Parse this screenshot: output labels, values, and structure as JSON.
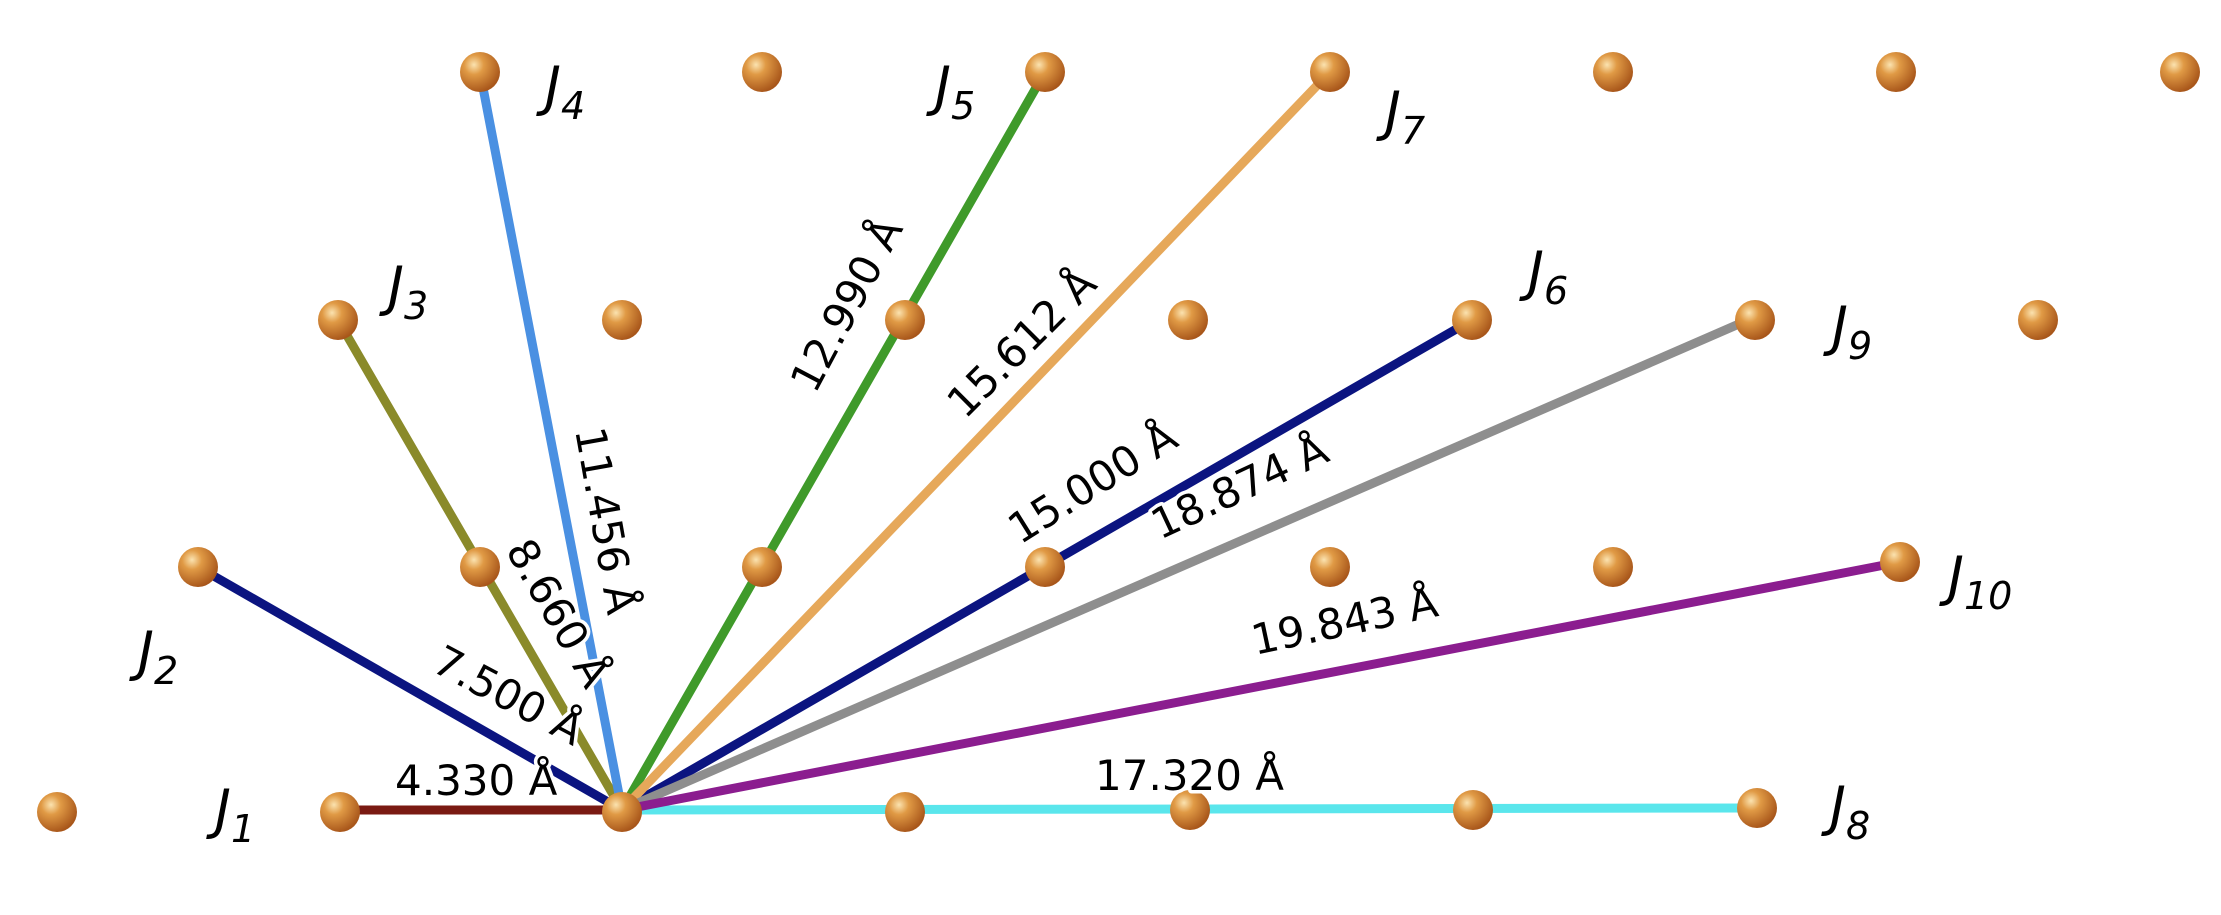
{
  "atom_color": "#d4852f",
  "bonds": [
    {
      "id": "J1",
      "label": "J",
      "sub": "1",
      "distance": "4.330 Å",
      "color": "#7a1a12"
    },
    {
      "id": "J2",
      "label": "J",
      "sub": "2",
      "distance": "7.500 Å",
      "color": "#0b1480"
    },
    {
      "id": "J3",
      "label": "J",
      "sub": "3",
      "distance": "8.660 Å",
      "color": "#8a8a2a"
    },
    {
      "id": "J4",
      "label": "J",
      "sub": "4",
      "distance": "11.456 Å",
      "color": "#4a90e2"
    },
    {
      "id": "J5",
      "label": "J",
      "sub": "5",
      "distance": "12.990 Å",
      "color": "#3f9a2a"
    },
    {
      "id": "J6",
      "label": "J",
      "sub": "6",
      "distance": "15.000 Å",
      "color": "#0b1480"
    },
    {
      "id": "J7",
      "label": "J",
      "sub": "7",
      "distance": "15.612 Å",
      "color": "#e6a85a"
    },
    {
      "id": "J8",
      "label": "J",
      "sub": "8",
      "distance": "17.320 Å",
      "color": "#5ae6ec"
    },
    {
      "id": "J9",
      "label": "J",
      "sub": "9",
      "distance": "18.874 Å",
      "color": "#8e8e8e"
    },
    {
      "id": "J10",
      "label": "J",
      "sub": "10",
      "distance": "19.843 Å",
      "color": "#8b1d8f"
    }
  ]
}
